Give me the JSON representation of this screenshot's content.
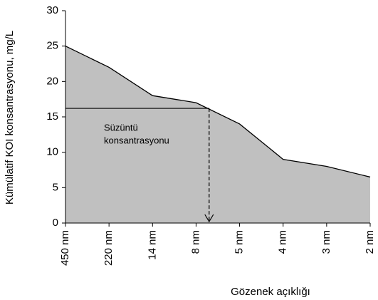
{
  "chart_data": {
    "type": "area",
    "categories": [
      "450 nm",
      "220 nm",
      "14 nm",
      "8 nm",
      "5 nm",
      "4 nm",
      "3 nm",
      "2 nm"
    ],
    "values": [
      25,
      22,
      18,
      17,
      14,
      9,
      8,
      6.5
    ],
    "color": "#c0c0c0",
    "line_color": "#000000",
    "ylim": [
      0,
      30
    ],
    "yticks": [
      0,
      5,
      10,
      15,
      20,
      25,
      30
    ],
    "x_label": "Gözenek açıklığı",
    "y_label": "Kümülatif KOI konsantrasyonu, mg/L",
    "annotation": {
      "lines": [
        "Süzüntü",
        "konsantrasyonu"
      ],
      "value": 16.2,
      "x_position": 3.3
    }
  }
}
